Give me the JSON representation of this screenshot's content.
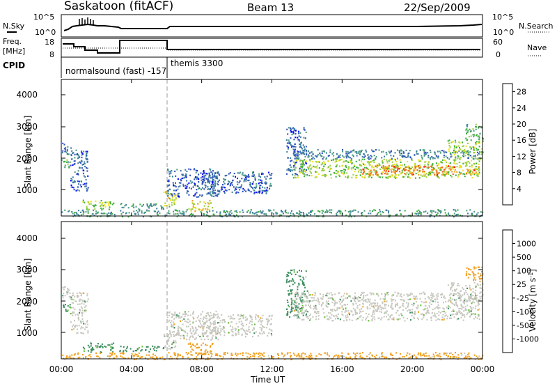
{
  "header": {
    "station": "Saskatoon (fitACF)",
    "beam": "Beam 13",
    "date": "22/Sep/2009"
  },
  "noise_panel": {
    "left_label": "N.Sky",
    "right_label": "N.Search",
    "left_ticks": [
      "10^5",
      "10^0"
    ],
    "right_ticks": [
      "10^5",
      "10^0"
    ]
  },
  "freq_panel": {
    "left_label_1": "Freq.",
    "left_label_2": "[MHz]",
    "right_label": "Nave",
    "left_ticks": [
      "18",
      "8"
    ],
    "right_ticks": [
      "60",
      "0"
    ]
  },
  "cpid_panel": {
    "label": "CPID",
    "modes": [
      {
        "name": "normalsound (fast) -157",
        "start_hour": 0
      },
      {
        "name": "themis 3300",
        "start_hour": 6
      }
    ]
  },
  "colors": {
    "power_scale": [
      "#0000ff",
      "#2f4fbf",
      "#3f7fa0",
      "#4f9f80",
      "#3faf3f",
      "#9fcf3f",
      "#f0e020",
      "#f0a020",
      "#f06010",
      "#ff0000"
    ],
    "velocity_scale": [
      "#1f3fbf",
      "#2f6f9f",
      "#3f8f5f",
      "#5fbf2f",
      "#c8c8c0",
      "#c8c8c0",
      "#f0a020",
      "#f07010",
      "#ff2000"
    ]
  },
  "chart_data": [
    {
      "type": "heatmap",
      "title": "Power",
      "xlabel": "Time UT",
      "ylabel": "Slant Range [km]",
      "colorbar_label": "Power [dB]",
      "xlim": [
        0,
        24
      ],
      "ylim": [
        180,
        4500
      ],
      "x_ticks": [
        "00:00",
        "04:00",
        "08:00",
        "12:00",
        "16:00",
        "20:00",
        "00:00"
      ],
      "y_ticks": [
        "1000",
        "2000",
        "3000",
        "4000"
      ],
      "colorbar_ticks": [
        "4",
        "8",
        "12",
        "16",
        "20",
        "24",
        "28"
      ],
      "colorbar_range": [
        0,
        30
      ],
      "regions": [
        {
          "t0": 0.0,
          "t1": 0.5,
          "r0": 1700,
          "r1": 2000,
          "level": 12
        },
        {
          "t0": 0.0,
          "t1": 0.6,
          "r0": 2100,
          "r1": 2500,
          "level": 6
        },
        {
          "t0": 0.5,
          "t1": 1.5,
          "r0": 1000,
          "r1": 2300,
          "level": 6
        },
        {
          "t0": 1.2,
          "t1": 3.0,
          "r0": 400,
          "r1": 700,
          "level": 16
        },
        {
          "t0": 3.3,
          "t1": 5.8,
          "r0": 420,
          "r1": 600,
          "level": 10
        },
        {
          "t0": 5.8,
          "t1": 6.5,
          "r0": 500,
          "r1": 1000,
          "level": 18
        },
        {
          "t0": 6.0,
          "t1": 9.0,
          "r0": 800,
          "r1": 1700,
          "level": 6
        },
        {
          "t0": 7.2,
          "t1": 8.6,
          "r0": 350,
          "r1": 700,
          "level": 20
        },
        {
          "t0": 8.0,
          "t1": 12.0,
          "r0": 900,
          "r1": 1600,
          "level": 6
        },
        {
          "t0": 0.0,
          "t1": 24.0,
          "r0": 180,
          "r1": 400,
          "level": 10
        },
        {
          "t0": 12.8,
          "t1": 14.0,
          "r0": 1500,
          "r1": 3000,
          "level": 6
        },
        {
          "t0": 13.2,
          "t1": 23.8,
          "r0": 1400,
          "r1": 2000,
          "level": 16
        },
        {
          "t0": 13.2,
          "t1": 23.8,
          "r0": 2000,
          "r1": 2300,
          "level": 8
        },
        {
          "t0": 17.0,
          "t1": 23.8,
          "r0": 1500,
          "r1": 1800,
          "level": 24
        },
        {
          "t0": 22.0,
          "t1": 24.0,
          "r0": 2000,
          "r1": 2600,
          "level": 16
        },
        {
          "t0": 23.0,
          "t1": 24.0,
          "r0": 2600,
          "r1": 3100,
          "level": 12
        }
      ]
    },
    {
      "type": "heatmap",
      "title": "Velocity",
      "xlabel": "Time UT",
      "ylabel": "Slant Range [km]",
      "colorbar_label": "Velocity [m s^-1]",
      "xlim": [
        0,
        24
      ],
      "ylim": [
        180,
        4500
      ],
      "x_ticks": [
        "00:00",
        "04:00",
        "08:00",
        "12:00",
        "16:00",
        "20:00",
        "00:00"
      ],
      "y_ticks": [
        "1000",
        "2000",
        "3000",
        "4000"
      ],
      "colorbar_ticks": [
        "1000",
        "500",
        "100",
        "25",
        "-25",
        "-100",
        "-500",
        "-1000"
      ],
      "regions": [
        {
          "t0": 0.0,
          "t1": 0.5,
          "r0": 1700,
          "r1": 2000,
          "level": 100
        },
        {
          "t0": 0.0,
          "t1": 0.6,
          "r0": 2100,
          "r1": 2500,
          "level": 0
        },
        {
          "t0": 0.5,
          "t1": 1.5,
          "r0": 1000,
          "r1": 2300,
          "level": 0
        },
        {
          "t0": 1.2,
          "t1": 3.0,
          "r0": 400,
          "r1": 700,
          "level": 150
        },
        {
          "t0": 3.3,
          "t1": 5.8,
          "r0": 420,
          "r1": 600,
          "level": 150
        },
        {
          "t0": 5.8,
          "t1": 6.5,
          "r0": 500,
          "r1": 1000,
          "level": 0
        },
        {
          "t0": 6.0,
          "t1": 9.0,
          "r0": 800,
          "r1": 1700,
          "level": 0
        },
        {
          "t0": 7.2,
          "t1": 8.6,
          "r0": 350,
          "r1": 700,
          "level": -300
        },
        {
          "t0": 8.0,
          "t1": 12.0,
          "r0": 900,
          "r1": 1600,
          "level": 0
        },
        {
          "t0": 0.0,
          "t1": 24.0,
          "r0": 180,
          "r1": 400,
          "level": -150
        },
        {
          "t0": 12.8,
          "t1": 14.0,
          "r0": 1500,
          "r1": 3000,
          "level": 100
        },
        {
          "t0": 13.2,
          "t1": 23.8,
          "r0": 1400,
          "r1": 2300,
          "level": 0
        },
        {
          "t0": 22.0,
          "t1": 24.0,
          "r0": 2000,
          "r1": 2600,
          "level": 0
        },
        {
          "t0": 23.0,
          "t1": 24.0,
          "r0": 2600,
          "r1": 3100,
          "level": -200
        }
      ]
    }
  ]
}
